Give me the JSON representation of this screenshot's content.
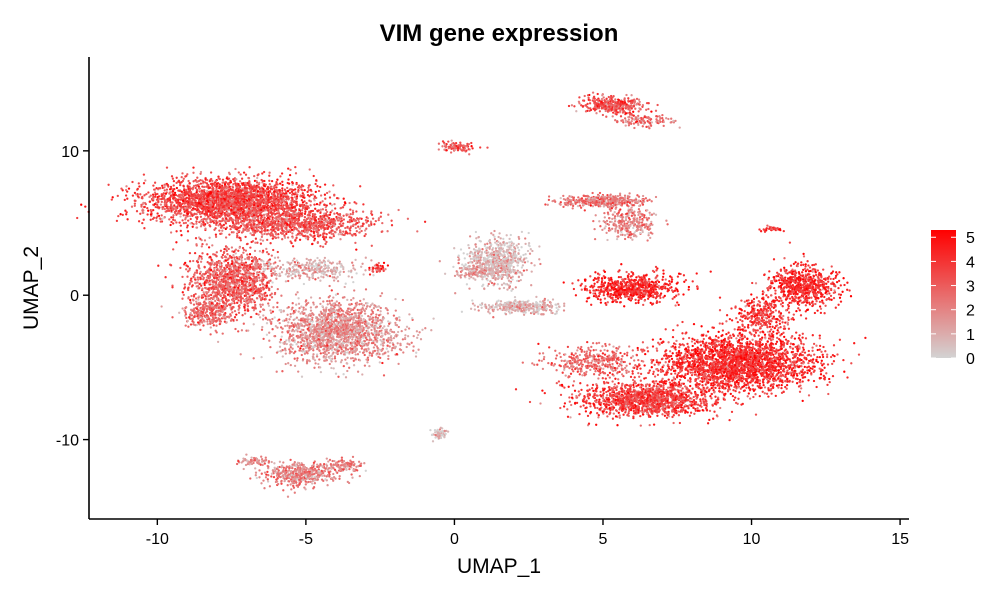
{
  "chart_data": {
    "type": "scatter",
    "title": "VIM gene expression",
    "xlabel": "UMAP_1",
    "ylabel": "UMAP_2",
    "xlim": [
      -12.3,
      15.3
    ],
    "ylim": [
      -15.5,
      16.5
    ],
    "xticks": [
      -10,
      -5,
      0,
      5,
      10,
      15
    ],
    "xtick_labels": [
      "-10",
      "-5",
      "0",
      "5",
      "10",
      "15"
    ],
    "yticks": [
      -10,
      0,
      10
    ],
    "ytick_labels": [
      "-10",
      "0",
      "10"
    ],
    "grid": false,
    "legend": {
      "placement": "right",
      "type": "colorbar",
      "min": 0,
      "max": 5.3,
      "ticks": [
        0,
        1,
        2,
        3,
        4,
        5
      ],
      "tick_labels": [
        "0",
        "1",
        "2",
        "3",
        "4",
        "5"
      ]
    },
    "color_low": "#d3d3d3",
    "color_high": "#ff0000",
    "clusters": [
      {
        "x": -7.5,
        "y": 6.5,
        "sx": 2.4,
        "sy": 1.3,
        "mean": 3.5,
        "n": 2600
      },
      {
        "x": -5.3,
        "y": 4.9,
        "sx": 2.2,
        "sy": 0.9,
        "mean": 3.2,
        "n": 900
      },
      {
        "x": -7.5,
        "y": 1.0,
        "sx": 1.2,
        "sy": 1.9,
        "mean": 3.0,
        "n": 1200
      },
      {
        "x": -8.3,
        "y": -1.3,
        "sx": 0.7,
        "sy": 0.8,
        "mean": 2.8,
        "n": 250
      },
      {
        "x": -3.9,
        "y": -2.5,
        "sx": 1.7,
        "sy": 1.7,
        "mean": 1.7,
        "n": 1700
      },
      {
        "x": -4.8,
        "y": 1.8,
        "sx": 1.4,
        "sy": 0.6,
        "mean": 1.0,
        "n": 300
      },
      {
        "x": -2.6,
        "y": 1.8,
        "sx": 0.2,
        "sy": 0.3,
        "mean": 3.5,
        "n": 40
      },
      {
        "x": 1.4,
        "y": 2.3,
        "sx": 0.9,
        "sy": 1.3,
        "mean": 0.8,
        "n": 700
      },
      {
        "x": 2.3,
        "y": -0.8,
        "sx": 1.1,
        "sy": 0.35,
        "mean": 0.8,
        "n": 350
      },
      {
        "x": 0.6,
        "y": 1.6,
        "sx": 0.7,
        "sy": 0.3,
        "mean": 1.5,
        "n": 80
      },
      {
        "x": -0.5,
        "y": -9.6,
        "sx": 0.2,
        "sy": 0.3,
        "mean": 0.4,
        "n": 60
      },
      {
        "x": -5.2,
        "y": -12.4,
        "sx": 1.0,
        "sy": 0.7,
        "mean": 2.0,
        "n": 450
      },
      {
        "x": -3.7,
        "y": -11.8,
        "sx": 0.5,
        "sy": 0.4,
        "mean": 2.0,
        "n": 100
      },
      {
        "x": -6.8,
        "y": -11.5,
        "sx": 0.5,
        "sy": 0.3,
        "mean": 2.0,
        "n": 70
      },
      {
        "x": 0.1,
        "y": 10.3,
        "sx": 0.5,
        "sy": 0.3,
        "mean": 3.0,
        "n": 90
      },
      {
        "x": 5.3,
        "y": 13.2,
        "sx": 0.9,
        "sy": 0.5,
        "mean": 3.3,
        "n": 350
      },
      {
        "x": 6.4,
        "y": 12.1,
        "sx": 0.8,
        "sy": 0.3,
        "mean": 2.3,
        "n": 110
      },
      {
        "x": 5.0,
        "y": 6.5,
        "sx": 1.2,
        "sy": 0.35,
        "mean": 2.3,
        "n": 380
      },
      {
        "x": 5.9,
        "y": 5.0,
        "sx": 0.8,
        "sy": 0.9,
        "mean": 2.0,
        "n": 270
      },
      {
        "x": 6.0,
        "y": 0.5,
        "sx": 1.3,
        "sy": 0.8,
        "mean": 4.3,
        "n": 700
      },
      {
        "x": 11.7,
        "y": 0.6,
        "sx": 1.0,
        "sy": 1.2,
        "mean": 4.2,
        "n": 650
      },
      {
        "x": 10.3,
        "y": -1.5,
        "sx": 0.8,
        "sy": 1.2,
        "mean": 3.8,
        "n": 300
      },
      {
        "x": 9.5,
        "y": -4.7,
        "sx": 2.2,
        "sy": 1.6,
        "mean": 4.1,
        "n": 2400
      },
      {
        "x": 6.5,
        "y": -7.2,
        "sx": 1.9,
        "sy": 1.0,
        "mean": 3.7,
        "n": 1300
      },
      {
        "x": 4.6,
        "y": -4.6,
        "sx": 1.3,
        "sy": 1.0,
        "mean": 2.8,
        "n": 350
      },
      {
        "x": 10.7,
        "y": 4.6,
        "sx": 0.3,
        "sy": 0.15,
        "mean": 3.8,
        "n": 40
      }
    ]
  }
}
